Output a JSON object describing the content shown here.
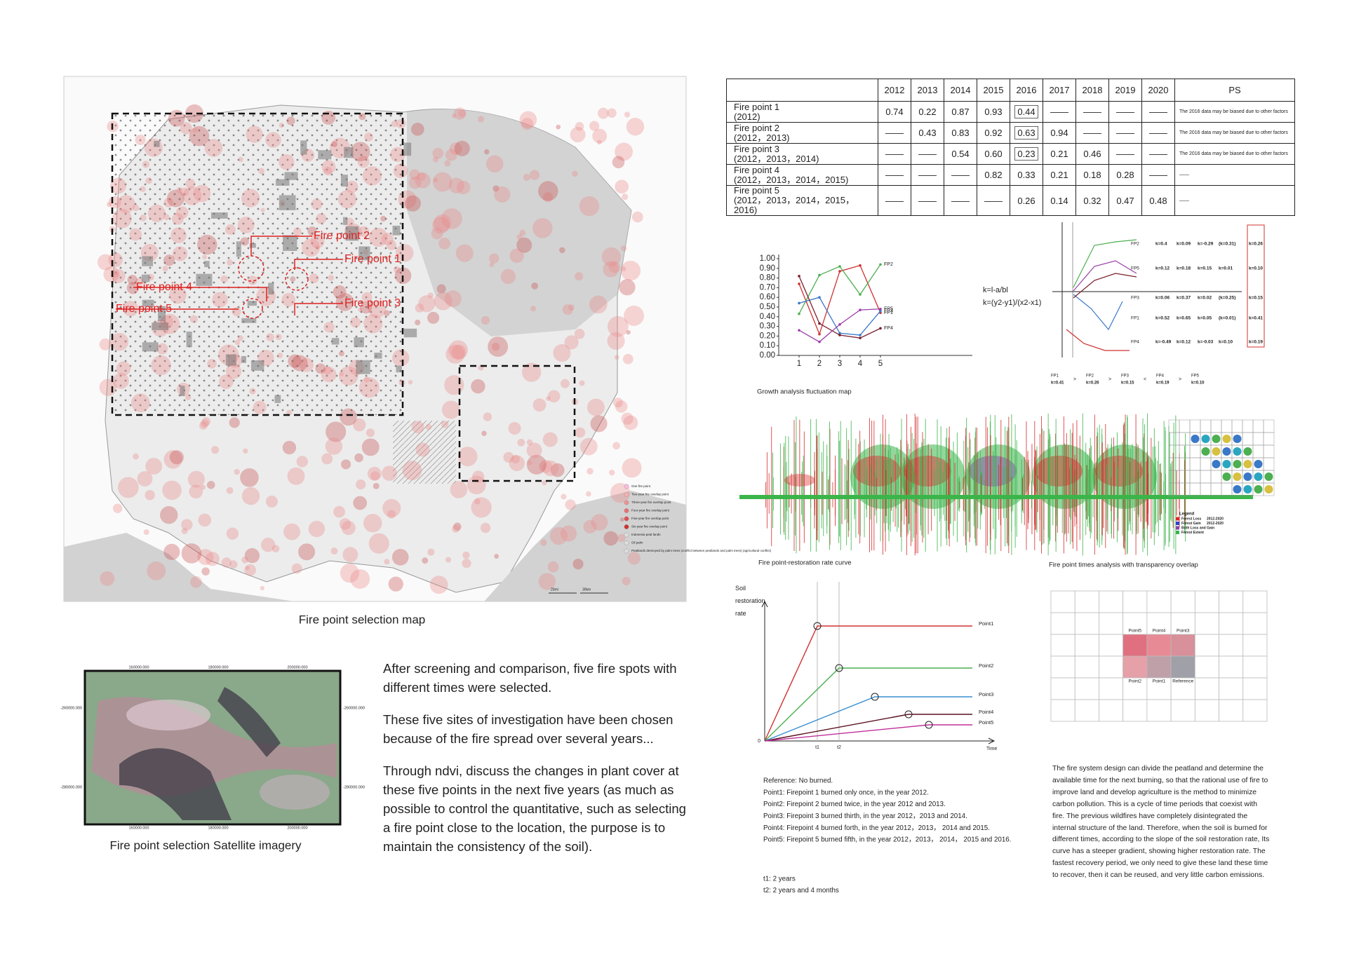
{
  "map": {
    "caption": "Fire point selection map",
    "fire_points": [
      "Fire point 2",
      "Fire point 1",
      "Fire point 4",
      "Fire point 5",
      "Fire point 3"
    ],
    "legend": [
      "One fire point",
      "Two-year fire overlap point",
      "Three-year fire overlap point",
      "Four-year fire overlap point",
      "Five-year fire overlap point",
      "Six-year fire overlap point",
      "Indonesia peat lands",
      "Oil palm",
      "Peatlands destroyed by palm trees (conflict between peatlands and palm trees) (agricultural conflict)"
    ],
    "scale": [
      "20mi",
      "30km"
    ]
  },
  "satellite": {
    "caption": "Fire point selection Satellite imagery",
    "x_labels": [
      "160000.000",
      "180000.000",
      "200000.000"
    ],
    "y_labels": [
      "-260000.000",
      "-280000.000"
    ]
  },
  "paragraphs": [
    "After screening and comparison, five fire spots with different times were selected.",
    "These five sites of investigation have been chosen because of the fire spread over several years...",
    "Through ndvi, discuss the changes in plant cover at these five points in the next five years (as much as possible to control the quantitative, such as selecting a fire point close to the location, the purpose is to maintain the consistency of the soil)."
  ],
  "table": {
    "years": [
      "2012",
      "2013",
      "2014",
      "2015",
      "2016",
      "2017",
      "2018",
      "2019",
      "2020"
    ],
    "ps_header": "PS",
    "rows": [
      {
        "name": "Fire point 1",
        "years": "(2012)",
        "values": [
          "0.74",
          "0.22",
          "0.87",
          "0.93",
          "0.44",
          "——",
          "——",
          "——",
          "——"
        ],
        "ps": "The 2016 data may be biased due to other factors"
      },
      {
        "name": "Fire point 2",
        "years": "(2012，2013)",
        "values": [
          "——",
          "0.43",
          "0.83",
          "0.92",
          "0.63",
          "0.94",
          "——",
          "——",
          "——"
        ],
        "ps": "The 2016 data may be biased due to other factors"
      },
      {
        "name": "Fire point 3",
        "years": "(2012，2013，2014)",
        "values": [
          "——",
          "——",
          "0.54",
          "0.60",
          "0.23",
          "0.21",
          "0.46",
          "——",
          "——"
        ],
        "ps": "The 2016 data may be biased due to other factors"
      },
      {
        "name": "Fire point 4",
        "years": "(2012，2013，2014，2015)",
        "values": [
          "——",
          "——",
          "——",
          "0.82",
          "0.33",
          "0.21",
          "0.18",
          "0.28",
          "——"
        ],
        "ps": "——"
      },
      {
        "name": "Fire point 5",
        "years": "(2012，2013，2014，2015，2016)",
        "values": [
          "——",
          "——",
          "——",
          "——",
          "0.26",
          "0.14",
          "0.32",
          "0.47",
          "0.48"
        ],
        "ps": "——"
      }
    ]
  },
  "ndvi_chart": {
    "type": "line",
    "xlim": [
      0,
      10
    ],
    "xticks": [
      1,
      2,
      3,
      4,
      5
    ],
    "ylim": [
      0,
      1
    ],
    "yticks": [
      {
        "value": 0,
        "label": "0.00"
      },
      {
        "value": 0.1,
        "label": "0.10"
      },
      {
        "value": 0.2,
        "label": "0.20"
      },
      {
        "value": 0.3,
        "label": "0.30"
      },
      {
        "value": 0.4,
        "label": "0.40"
      },
      {
        "value": 0.5,
        "label": "0.50"
      },
      {
        "value": 0.6,
        "label": "0.60"
      },
      {
        "value": 0.7,
        "label": "0.70"
      },
      {
        "value": 0.8,
        "label": "0.80"
      },
      {
        "value": 0.9,
        "label": "0.90"
      },
      {
        "value": 1,
        "label": "1.00"
      }
    ],
    "x": [
      1,
      2,
      3,
      4,
      5
    ],
    "series": [
      {
        "name": "FP1",
        "color": "#d03030",
        "values": [
          0.74,
          0.22,
          0.87,
          0.93,
          0.44
        ]
      },
      {
        "name": "FP2",
        "color": "#4caf50",
        "values": [
          0.43,
          0.83,
          0.92,
          0.63,
          0.94
        ]
      },
      {
        "name": "FP3",
        "color": "#3a78c8",
        "values": [
          0.54,
          0.6,
          0.23,
          0.21,
          0.46
        ]
      },
      {
        "name": "FP4",
        "color": "#7a1f2b",
        "values": [
          0.82,
          0.33,
          0.21,
          0.18,
          0.28
        ]
      },
      {
        "name": "FP5",
        "color": "#9b3fa8",
        "values": [
          0.26,
          0.14,
          0.32,
          0.47,
          0.48
        ]
      }
    ]
  },
  "formula": [
    "k=l-a/bl",
    "k=(y2-y1)/(x2-x1)"
  ],
  "slope_chart": {
    "rows": [
      {
        "label": "FP2",
        "ks": [
          "k=0.4",
          "k=0.09",
          "k=-0.29",
          "(k=0.31)"
        ],
        "total": "k=0.26"
      },
      {
        "label": "FP5",
        "ks": [
          "k=0.12",
          "k=0.18",
          "k=0.15",
          "k=0.01"
        ],
        "total": "k=0.10"
      },
      {
        "label": "FP3",
        "ks": [
          "k=0.06",
          "k=0.37",
          "k=0.02",
          "(k=0.25)"
        ],
        "total": "k=0.15"
      },
      {
        "label": "FP1",
        "ks": [
          "k=0.52",
          "k=0.65",
          "k=0.05",
          "(k=0.01)"
        ],
        "total": "k=0.41"
      },
      {
        "label": "FP4",
        "ks": [
          "k=-0.49",
          "k=0.12",
          "k=-0.03",
          "k=0.10"
        ],
        "total": "k=0.19"
      }
    ]
  },
  "ranking": {
    "items": [
      {
        "fp": "FP1",
        "k": "k=0.41"
      },
      {
        "fp": "FP2",
        "k": "k=0.26"
      },
      {
        "fp": "FP3",
        "k": "k=0.15"
      },
      {
        "fp": "FP4",
        "k": "k=0.19"
      },
      {
        "fp": "FP5",
        "k": "k=0.10"
      }
    ],
    "signs": [
      ">",
      ">",
      "<",
      ">"
    ]
  },
  "fluctuation": {
    "title": "Growth analysis fluctuation map",
    "legend_title": "Legend",
    "legend": [
      {
        "label": "Forest Loss",
        "period": "2012-2020",
        "color": "#e0262b"
      },
      {
        "label": "Forest Gain",
        "period": "2012-2020",
        "color": "#3040d0"
      },
      {
        "label": "Both Loss and Gain",
        "color": "#8a3fb0"
      },
      {
        "label": "Forest Extent",
        "color": "#3bb54a"
      }
    ]
  },
  "restoration": {
    "title": "Fire point-restoration rate curve",
    "y_label": "Soil restoration rate",
    "x_label": "Time",
    "origin": "0",
    "t_labels": [
      "t1",
      "t2"
    ],
    "points": [
      {
        "name": "Point1",
        "color": "#d03030"
      },
      {
        "name": "Point2",
        "color": "#4caf50"
      },
      {
        "name": "Point3",
        "color": "#3a8fd0"
      },
      {
        "name": "Point4",
        "color": "#5a1020"
      },
      {
        "name": "Point5",
        "color": "#c0309a"
      }
    ]
  },
  "overlap": {
    "title": "Fire point times analysis with transparency overlap",
    "top": [
      "Point5",
      "Point4",
      "Point3"
    ],
    "bottom": [
      "Point2",
      "Point1",
      "Reference"
    ]
  },
  "reference": {
    "lines": [
      "Reference: No burned.",
      "Point1: Firepoint 1 burned only once, in the year 2012.",
      "Point2: Firepoint 2 burned twice, in the year 2012 and 2013.",
      "Point3: Firepoint 3 burned thirth, in the year 2012，2013 and 2014.",
      "Point4: Firepoint 4 burned forth, in the year 2012，2013， 2014 and 2015.",
      "Point5: Firepoint 5 burned fifth, in the year 2012，2013， 2014， 2015 and 2016."
    ],
    "t_notes": [
      "t1: 2 years",
      "t2: 2 years and 4 months"
    ]
  },
  "design_text": "The fire system design can divide the peatland and determine the available time for the next burning, so that the rational use of fire to improve land and develop agriculture is the method to minimize carbon pollution. This is a cycle of time periods that coexist with fire. The previous wildfires have completely disintegrated the internal structure of the land. Therefore, when the soil is burned for different times, according to the slope of the soil restoration rate, Its curve has a steeper gradient, showing higher restoration rate. The fastest recovery period, we only need to give these land these time to recover, then it can be reused, and very little carbon emissions."
}
